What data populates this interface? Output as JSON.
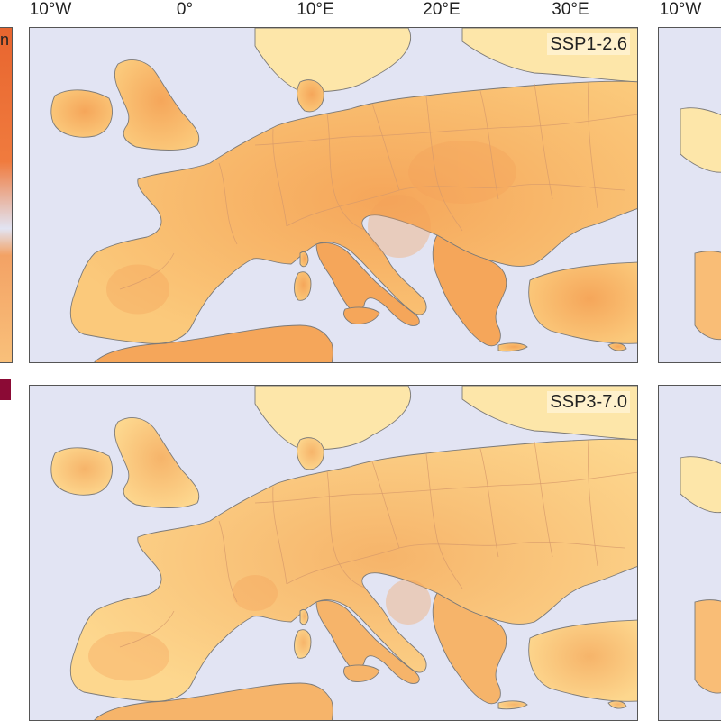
{
  "longitude_labels": [
    "10°W",
    "0°",
    "10°E",
    "20°E",
    "30°E"
  ],
  "right_longitude_label": "10°W",
  "left_strip_partial_letter": "n",
  "panels": [
    {
      "scenario": "SSP1-2.6",
      "warming_tint": "#fbc97b",
      "hotspot_tint": "#f5a65a"
    },
    {
      "scenario": "SSP3-7.0",
      "warming_tint": "#fdd78e",
      "hotspot_tint": "#f6b46a"
    }
  ],
  "colors": {
    "ocean": "#e2e4f3",
    "land_mid": "#fbcb80",
    "land_light": "#fde6a9",
    "land_hot": "#f4a15a",
    "strip_hot": "#e96a32",
    "strip_dark": "#8b0a35"
  }
}
